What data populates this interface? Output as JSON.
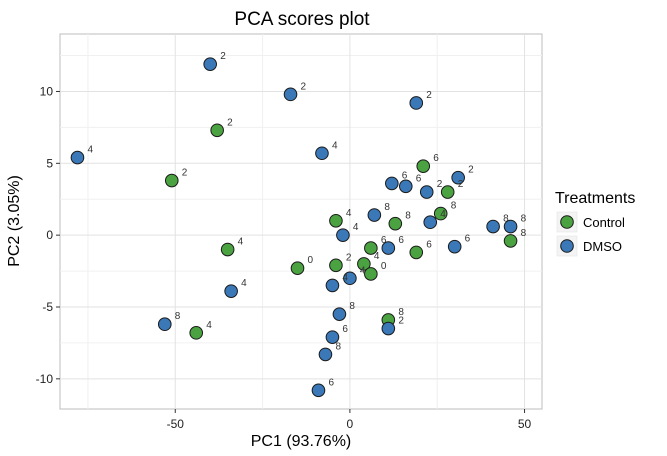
{
  "chart_data": {
    "type": "scatter",
    "title": "PCA scores plot",
    "xlabel": "PC1 (93.76%)",
    "ylabel": "PC2 (3.05%)",
    "xlim": [
      -83,
      55
    ],
    "ylim": [
      -12.1,
      14.0
    ],
    "xticks": [
      -50,
      0,
      50
    ],
    "yticks": [
      -10,
      -5,
      0,
      5,
      10
    ],
    "grid": true,
    "legend": {
      "title": "Treatments",
      "placement": "right"
    },
    "series": [
      {
        "name": "Control",
        "color": "#4aa241",
        "points": [
          {
            "x": -38,
            "y": 7.3,
            "label": "2"
          },
          {
            "x": -51,
            "y": 3.8,
            "label": "2"
          },
          {
            "x": 21,
            "y": 4.8,
            "label": "6"
          },
          {
            "x": 28,
            "y": 3.0,
            "label": "2"
          },
          {
            "x": -4,
            "y": 1.0,
            "label": "4"
          },
          {
            "x": 13,
            "y": 0.8,
            "label": "8"
          },
          {
            "x": 26,
            "y": 1.5,
            "label": "8"
          },
          {
            "x": 46,
            "y": -0.4,
            "label": "8"
          },
          {
            "x": 6,
            "y": -0.9,
            "label": "6"
          },
          {
            "x": 19,
            "y": -1.2,
            "label": "6"
          },
          {
            "x": -35,
            "y": -1.0,
            "label": "4"
          },
          {
            "x": -15,
            "y": -2.3,
            "label": "0"
          },
          {
            "x": -4,
            "y": -2.1,
            "label": "2"
          },
          {
            "x": 4,
            "y": -2.0,
            "label": "4"
          },
          {
            "x": 6,
            "y": -2.7,
            "label": "0"
          },
          {
            "x": -44,
            "y": -6.8,
            "label": "4"
          },
          {
            "x": 11,
            "y": -5.9,
            "label": "8"
          }
        ]
      },
      {
        "name": "DMSO",
        "color": "#3a78b8",
        "points": [
          {
            "x": -40,
            "y": 11.9,
            "label": "2"
          },
          {
            "x": -17,
            "y": 9.8,
            "label": "2"
          },
          {
            "x": 19,
            "y": 9.2,
            "label": "2"
          },
          {
            "x": -78,
            "y": 5.4,
            "label": "4"
          },
          {
            "x": -8,
            "y": 5.7,
            "label": "4"
          },
          {
            "x": 12,
            "y": 3.6,
            "label": "6"
          },
          {
            "x": 16,
            "y": 3.4,
            "label": "6"
          },
          {
            "x": 22,
            "y": 3.0,
            "label": "2"
          },
          {
            "x": 31,
            "y": 4.0,
            "label": "2"
          },
          {
            "x": 7,
            "y": 1.4,
            "label": "8"
          },
          {
            "x": 23,
            "y": 0.9,
            "label": "4"
          },
          {
            "x": 41,
            "y": 0.6,
            "label": "8"
          },
          {
            "x": 46,
            "y": 0.6,
            "label": "8"
          },
          {
            "x": -2,
            "y": 0.0,
            "label": "4"
          },
          {
            "x": 11,
            "y": -0.9,
            "label": "6"
          },
          {
            "x": 30,
            "y": -0.8,
            "label": "6"
          },
          {
            "x": 0,
            "y": -3.0,
            "label": "4"
          },
          {
            "x": -5,
            "y": -3.5,
            "label": "4"
          },
          {
            "x": -34,
            "y": -3.9,
            "label": "4"
          },
          {
            "x": -3,
            "y": -5.5,
            "label": "8"
          },
          {
            "x": -53,
            "y": -6.2,
            "label": "8"
          },
          {
            "x": 11,
            "y": -6.5,
            "label": "2"
          },
          {
            "x": -5,
            "y": -7.1,
            "label": "6"
          },
          {
            "x": -7,
            "y": -8.3,
            "label": "8"
          },
          {
            "x": -9,
            "y": -10.8,
            "label": "6"
          }
        ]
      }
    ]
  }
}
